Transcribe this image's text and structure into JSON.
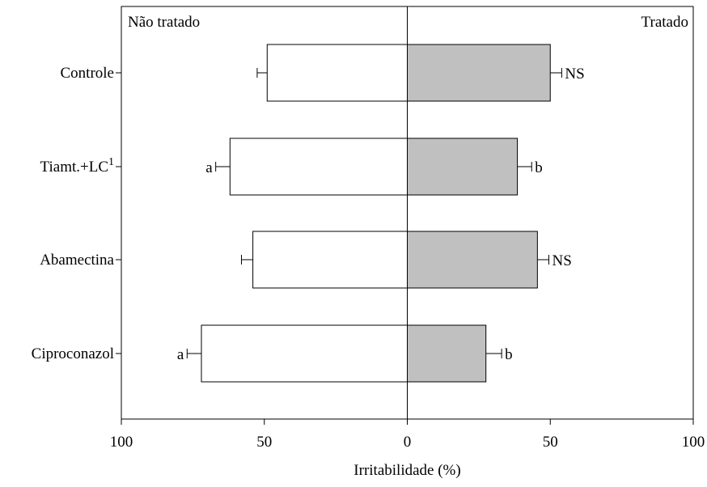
{
  "chart_data": {
    "type": "bar",
    "orientation": "horizontal-bidirectional",
    "left_panel_label": "Não tratado",
    "right_panel_label": "Tratado",
    "xlabel": "Irritabilidade (%)",
    "xlim": [
      -100,
      100
    ],
    "x_tick_values": [
      -100,
      -50,
      0,
      50,
      100
    ],
    "x_tick_labels": [
      "100",
      "50",
      "0",
      "50",
      "100"
    ],
    "grid": false,
    "categories": [
      "Controle",
      "Tiamt.+LC",
      "Abamectina",
      "Ciproconazol"
    ],
    "category_superscripts": [
      "",
      "1",
      "",
      ""
    ],
    "series": [
      {
        "name": "Não tratado",
        "color": "#ffffff",
        "values": [
          49,
          62,
          54,
          72
        ],
        "errors": [
          3.5,
          5,
          4,
          5
        ],
        "labels": [
          "",
          "a",
          "",
          "a"
        ]
      },
      {
        "name": "Tratado",
        "color": "#c0c0c0",
        "values": [
          50,
          38.5,
          45.5,
          27.5
        ],
        "errors": [
          4,
          5,
          4,
          5.5
        ],
        "labels": [
          "NS",
          "b",
          "NS",
          "b"
        ]
      }
    ]
  }
}
